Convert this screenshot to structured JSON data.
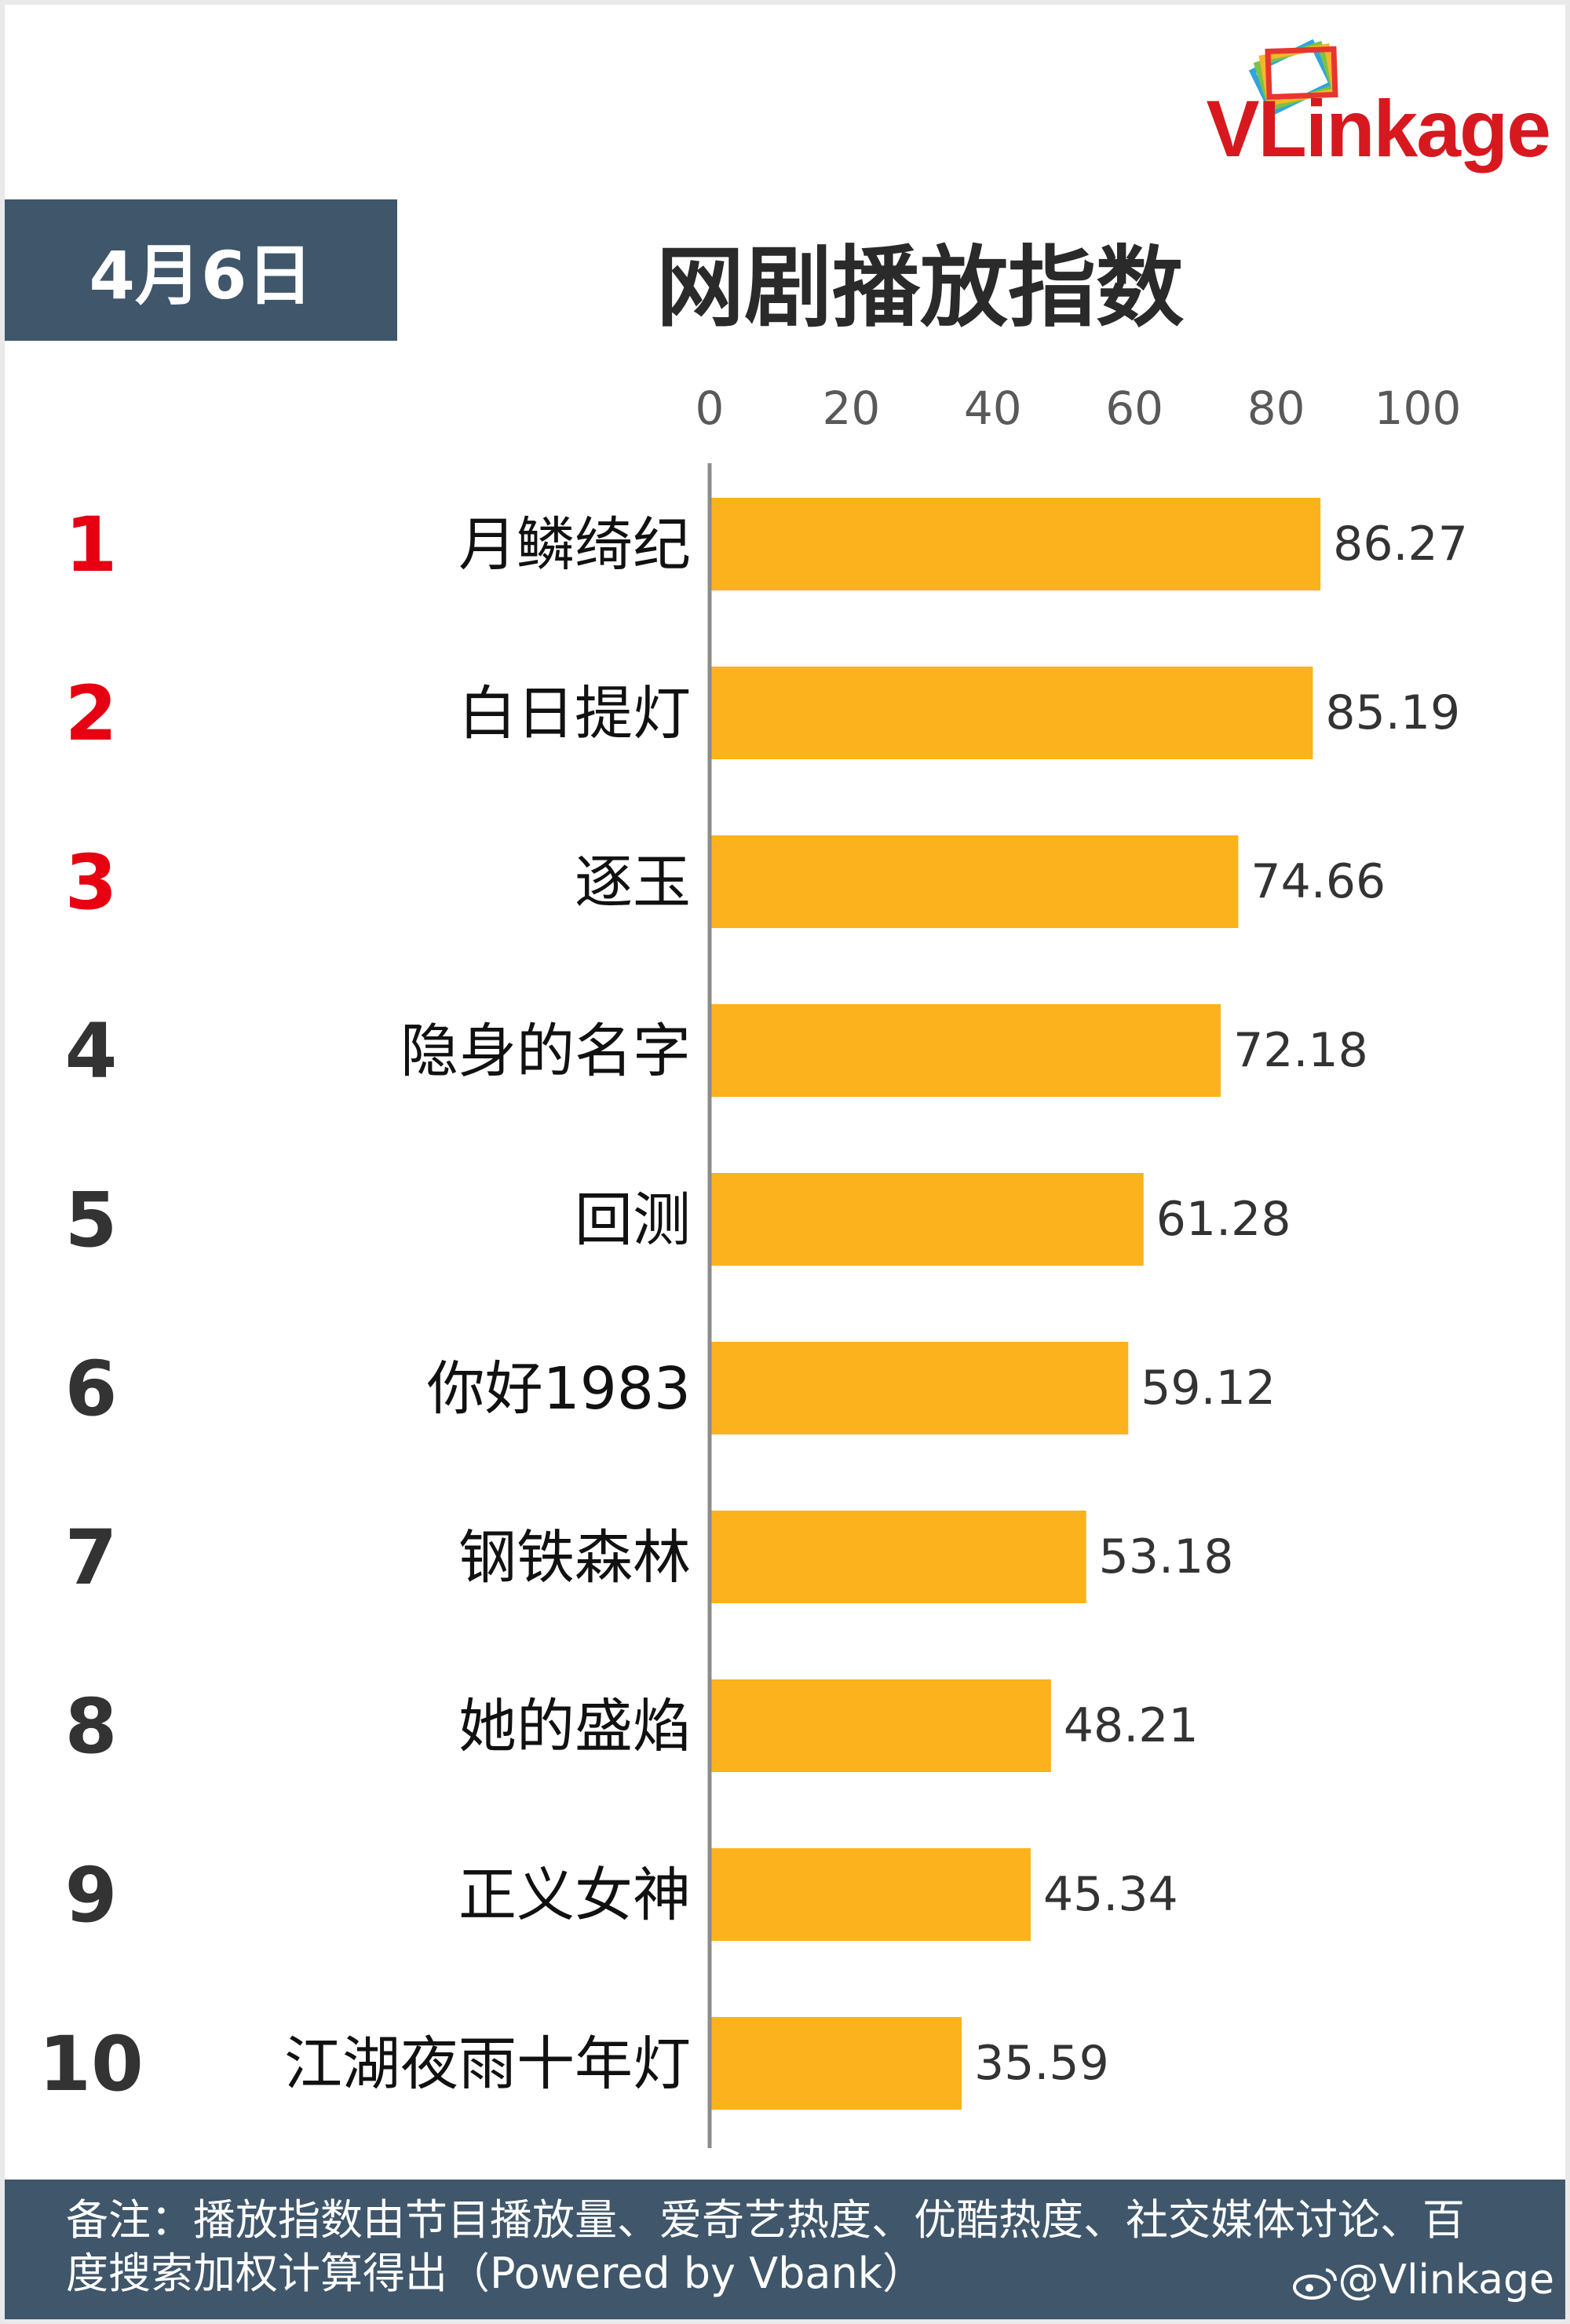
{
  "brand": {
    "logo_text": "VLinkage"
  },
  "header": {
    "date": "4月6日",
    "title": "网剧播放指数"
  },
  "colors": {
    "bar": "#fbb21d",
    "rank_top": "#e60012",
    "rank_other": "#333333",
    "banner": "#3f566b"
  },
  "chart_data": {
    "type": "bar",
    "orientation": "horizontal",
    "title": "网剧播放指数",
    "xlim": [
      0,
      100
    ],
    "x_ticks": [
      "0",
      "20",
      "40",
      "60",
      "80",
      "100"
    ],
    "ranks": [
      "1",
      "2",
      "3",
      "4",
      "5",
      "6",
      "7",
      "8",
      "9",
      "10"
    ],
    "categories": [
      "月鳞绮纪",
      "白日提灯",
      "逐玉",
      "隐身的名字",
      "回测",
      "你好1983",
      "钢铁森林",
      "她的盛焰",
      "正义女神",
      "江湖夜雨十年灯"
    ],
    "values": [
      86.27,
      85.19,
      74.66,
      72.18,
      61.28,
      59.12,
      53.18,
      48.21,
      45.34,
      35.59
    ],
    "value_labels": [
      "86.27",
      "85.19",
      "74.66",
      "72.18",
      "61.28",
      "59.12",
      "53.18",
      "48.21",
      "45.34",
      "35.59"
    ],
    "grid": false,
    "legend": "none"
  },
  "footer": {
    "note": "备注：播放指数由节目播放量、爱奇艺热度、优酷热度、社交媒体讨论、百度搜索加权计算得出（Powered by Vbank）",
    "watermark": "@Vlinkage"
  }
}
